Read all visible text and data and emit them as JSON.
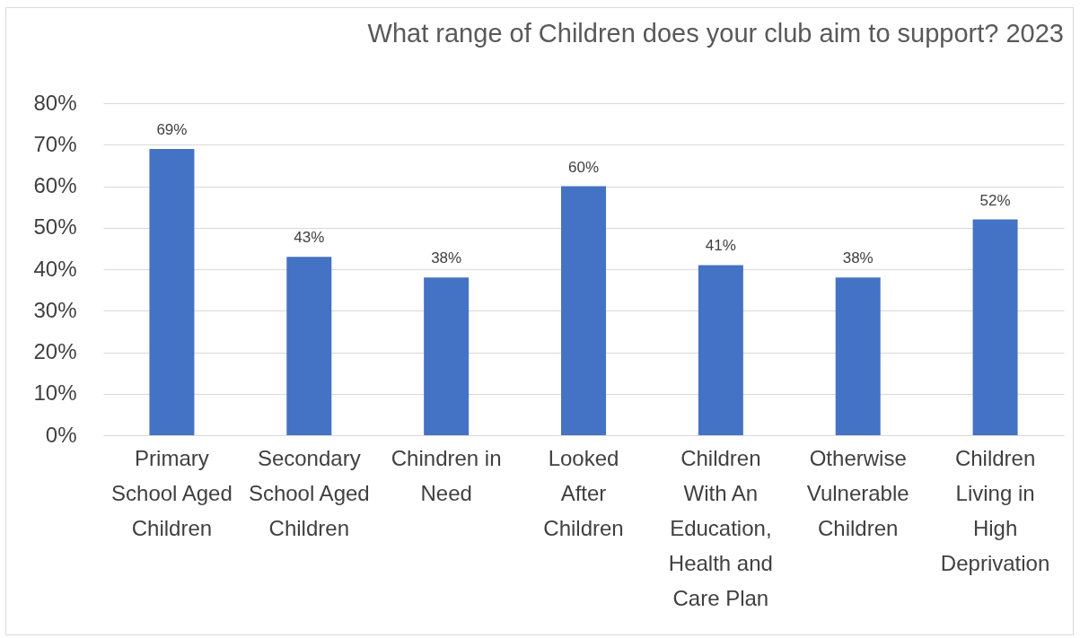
{
  "chart_data": {
    "type": "bar",
    "title": "What range of Children does your club aim to support? 2023",
    "categories": [
      "Primary School Aged Children",
      "Secondary School Aged Children",
      "Chindren in Need",
      "Looked After Children",
      "Children With An Education, Health and Care Plan",
      "Otherwise Vulnerable Children",
      "Children Living in High Deprivation"
    ],
    "values": [
      69,
      43,
      38,
      60,
      41,
      38,
      52
    ],
    "value_labels": [
      "69%",
      "43%",
      "38%",
      "60%",
      "41%",
      "38%",
      "52%"
    ],
    "color": "#4472c4",
    "ylim": [
      0,
      80
    ],
    "yticks": [
      {
        "value": 0,
        "label": "0%"
      },
      {
        "value": 10,
        "label": "10%"
      },
      {
        "value": 20,
        "label": "20%"
      },
      {
        "value": 30,
        "label": "30%"
      },
      {
        "value": 40,
        "label": "40%"
      },
      {
        "value": 50,
        "label": "50%"
      },
      {
        "value": 60,
        "label": "60%"
      },
      {
        "value": 70,
        "label": "70%"
      },
      {
        "value": 80,
        "label": "80%"
      }
    ],
    "grid": "y"
  }
}
